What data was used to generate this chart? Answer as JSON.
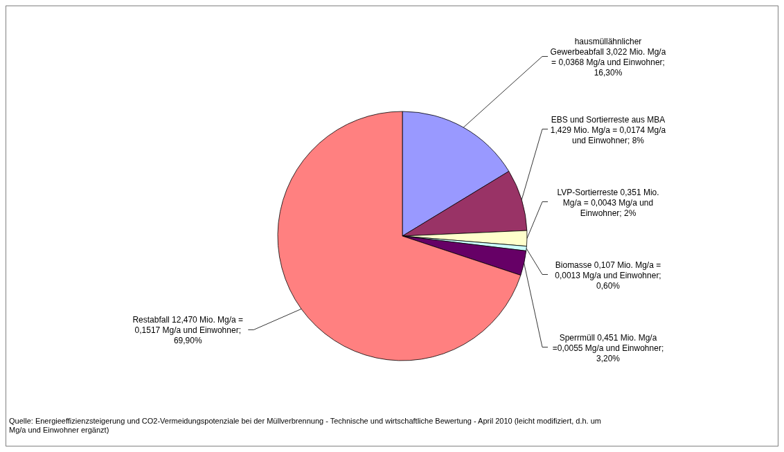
{
  "chart_data": {
    "type": "pie",
    "categories": [
      "hausmüllähnlicher Gewerbeabfall 3,022 Mio. Mg/a = 0,0368 Mg/a und Einwohner; 16,30%",
      "EBS und Sortierreste aus MBA 1,429 Mio. Mg/a = 0,0174 Mg/a und Einwohner; 8%",
      "LVP-Sortierreste 0,351 Mio. Mg/a = 0,0043 Mg/a und Einwohner; 2%",
      "Biomasse 0,107 Mio. Mg/a = 0,0013 Mg/a und Einwohner; 0,60%",
      "Sperrmüll 0,451 Mio. Mg/a =0,0055 Mg/a und Einwohner; 3,20%",
      "Restabfall 12,470 Mio. Mg/a = 0,1517 Mg/a und Einwohner; 69,90%"
    ],
    "values": [
      16.3,
      8,
      2,
      0.6,
      3.2,
      69.9
    ],
    "colors": [
      "#9999ff",
      "#993366",
      "#ffffcc",
      "#ccffff",
      "#660066",
      "#ff8080"
    ],
    "annotations": [
      "Quelle: Energieeffizienzsteigerung und CO2-Vermeidungspotenziale bei der Müllverbrennung - Technische und wirtschaftliche Bewertung - April 2010 (leicht modifiziert, d.h. um Mg/a und Einwohner ergänzt)"
    ]
  }
}
